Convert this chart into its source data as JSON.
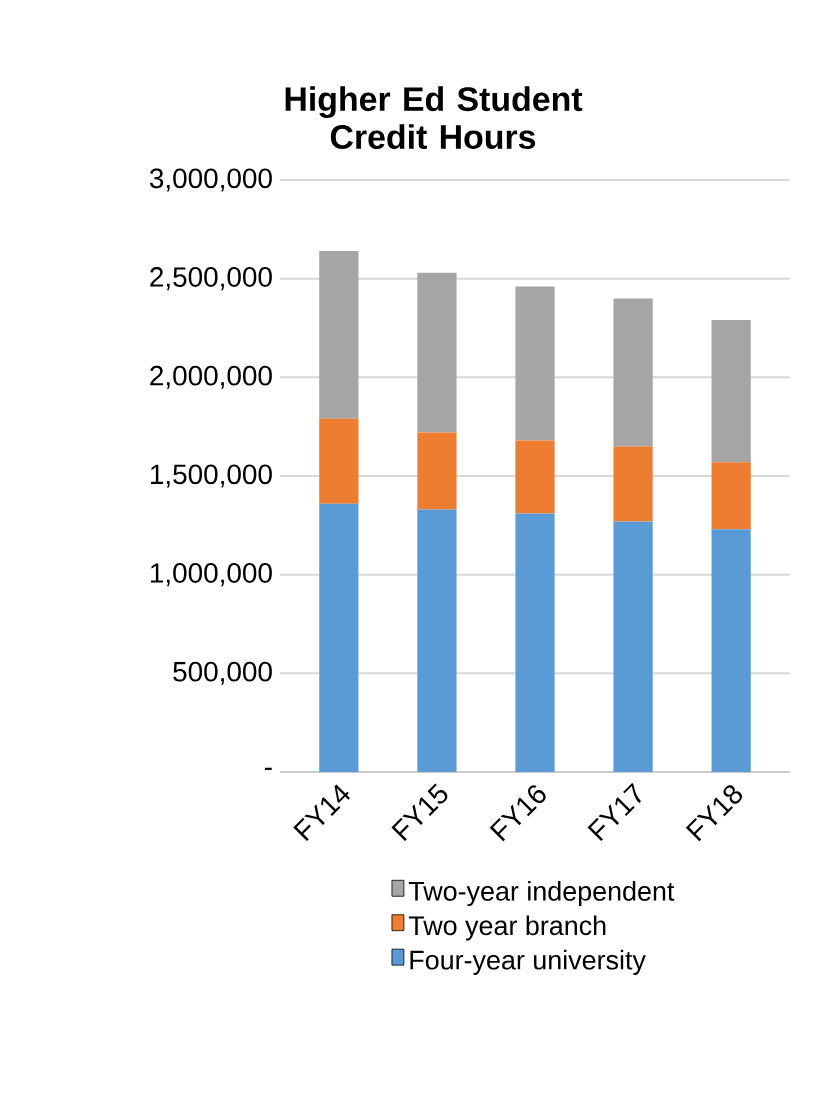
{
  "chart_data": {
    "type": "bar",
    "stacked": true,
    "title": "Higher Ed Student Credit Hours",
    "categories": [
      "FY14",
      "FY15",
      "FY16",
      "FY17",
      "FY18"
    ],
    "series": [
      {
        "name": "Four-year university",
        "color": "#5b9bd5",
        "values": [
          1360000,
          1330000,
          1310000,
          1270000,
          1230000
        ]
      },
      {
        "name": "Two year branch",
        "color": "#ed7d31",
        "values": [
          430000,
          390000,
          370000,
          380000,
          340000
        ]
      },
      {
        "name": "Two-year independent",
        "color": "#a5a5a5",
        "values": [
          850000,
          810000,
          780000,
          750000,
          720000
        ]
      }
    ],
    "ylim": [
      0,
      3000000
    ],
    "yticks": [
      {
        "value": 0,
        "label": "-"
      },
      {
        "value": 500000,
        "label": "500,000"
      },
      {
        "value": 1000000,
        "label": "1,000,000"
      },
      {
        "value": 1500000,
        "label": "1,500,000"
      },
      {
        "value": 2000000,
        "label": "2,000,000"
      },
      {
        "value": 2500000,
        "label": "2,500,000"
      },
      {
        "value": 3000000,
        "label": "3,000,000"
      }
    ],
    "grid": "y",
    "legend": "bottom"
  }
}
